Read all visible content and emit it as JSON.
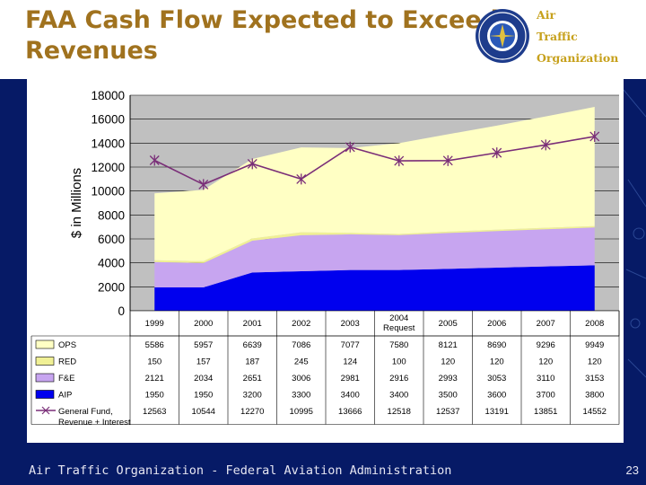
{
  "slide": {
    "title": "FAA Cash Flow Expected to Exceed Revenues",
    "org_line1": "Air",
    "org_line2": "Traffic",
    "org_line3": "Organization",
    "footer": "Air Traffic Organization - Federal Aviation Administration",
    "page_number": "23"
  },
  "chart_data": {
    "type": "area",
    "stacked": true,
    "ylabel": "$ in Millions",
    "ylim": [
      0,
      18000
    ],
    "yticks": [
      0,
      2000,
      4000,
      6000,
      8000,
      10000,
      12000,
      14000,
      16000,
      18000
    ],
    "categories": [
      "1999",
      "2000",
      "2001",
      "2002",
      "2003",
      "2004\nRequest",
      "2005",
      "2006",
      "2007",
      "2008"
    ],
    "series": [
      {
        "name": "AIP",
        "color": "#0000ee",
        "values": [
          1950,
          1950,
          3200,
          3300,
          3400,
          3400,
          3500,
          3600,
          3700,
          3800
        ]
      },
      {
        "name": "F&E",
        "color": "#c7a5f0",
        "values": [
          2121,
          2034,
          2651,
          3006,
          2981,
          2916,
          2993,
          3053,
          3110,
          3153
        ]
      },
      {
        "name": "RED",
        "color": "#f0f095",
        "values": [
          150,
          157,
          187,
          245,
          124,
          100,
          120,
          120,
          120,
          120
        ]
      },
      {
        "name": "OPS",
        "color": "#ffffc4",
        "values": [
          5586,
          5957,
          6639,
          7086,
          7077,
          7580,
          8121,
          8690,
          9296,
          9949
        ]
      }
    ],
    "line": {
      "name": "General Fund, Revenue + Interest",
      "color": "#7a2e78",
      "values": [
        12563,
        10544,
        12270,
        10995,
        13666,
        12518,
        12537,
        13191,
        13851,
        14552
      ]
    },
    "table": {
      "row_order": [
        "OPS",
        "RED",
        "F&E",
        "AIP",
        "General Fund, Revenue + Interest"
      ],
      "rows": [
        {
          "label": "OPS",
          "values": [
            "5586",
            "5957",
            "6639",
            "7086",
            "7077",
            "7580",
            "8121",
            "8690",
            "9296",
            "9949"
          ]
        },
        {
          "label": "RED",
          "values": [
            "150",
            "157",
            "187",
            "245",
            "124",
            "100",
            "120",
            "120",
            "120",
            "120"
          ]
        },
        {
          "label": "F&E",
          "values": [
            "2121",
            "2034",
            "2651",
            "3006",
            "2981",
            "2916",
            "2993",
            "3053",
            "3110",
            "3153"
          ]
        },
        {
          "label": "AIP",
          "values": [
            "1950",
            "1950",
            "3200",
            "3300",
            "3400",
            "3400",
            "3500",
            "3600",
            "3700",
            "3800"
          ]
        },
        {
          "label": "General Fund, Revenue + Interest",
          "values": [
            "12563",
            "10544",
            "12270",
            "10995",
            "13666",
            "12518",
            "12537",
            "13191",
            "13851",
            "14552"
          ]
        }
      ]
    }
  }
}
